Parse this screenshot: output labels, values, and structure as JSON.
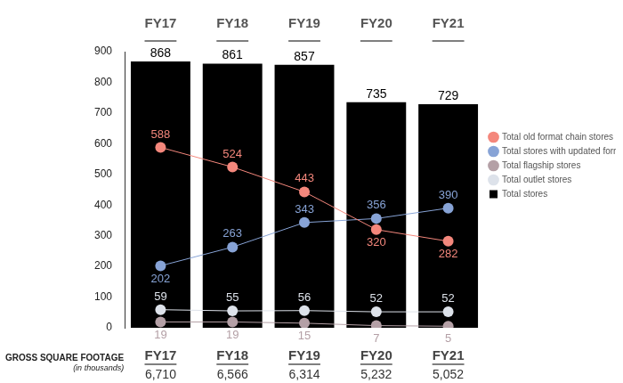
{
  "chart_data": {
    "type": "bar",
    "categories": [
      "FY17",
      "FY18",
      "FY19",
      "FY20",
      "FY21"
    ],
    "series": [
      {
        "name": "Total old format chain stores",
        "type": "line",
        "color": "#f4877c",
        "marker": "circle",
        "values": [
          588,
          524,
          443,
          320,
          282
        ]
      },
      {
        "name": "Total stores with updated formats",
        "type": "line",
        "color": "#87a3d6",
        "marker": "circle",
        "values": [
          202,
          263,
          343,
          356,
          390
        ]
      },
      {
        "name": "Total flagship stores",
        "type": "line",
        "color": "#b4a0a6",
        "marker": "circle",
        "values": [
          19,
          19,
          15,
          7,
          5
        ]
      },
      {
        "name": "Total outlet stores",
        "type": "line",
        "color": "#dde2ea",
        "marker": "circle",
        "values": [
          59,
          55,
          56,
          52,
          52
        ]
      },
      {
        "name": "Total stores",
        "type": "bar",
        "color": "#000000",
        "values": [
          868,
          861,
          857,
          735,
          729
        ]
      }
    ],
    "ylim": [
      0,
      900
    ],
    "yticks": [
      0,
      100,
      200,
      300,
      400,
      500,
      600,
      700,
      800,
      900
    ],
    "grid": false,
    "legend": "right",
    "data_labels": true,
    "gross_square_footage": {
      "title": "GROSS SQUARE FOOTAGE",
      "subtitle": "(in thousands)",
      "categories": [
        "FY17",
        "FY18",
        "FY19",
        "FY20",
        "FY21"
      ],
      "values": [
        6710,
        6566,
        6314,
        5232,
        5052
      ],
      "value_labels": [
        "6,710",
        "6,566",
        "6,314",
        "5,232",
        "5,052"
      ]
    }
  }
}
